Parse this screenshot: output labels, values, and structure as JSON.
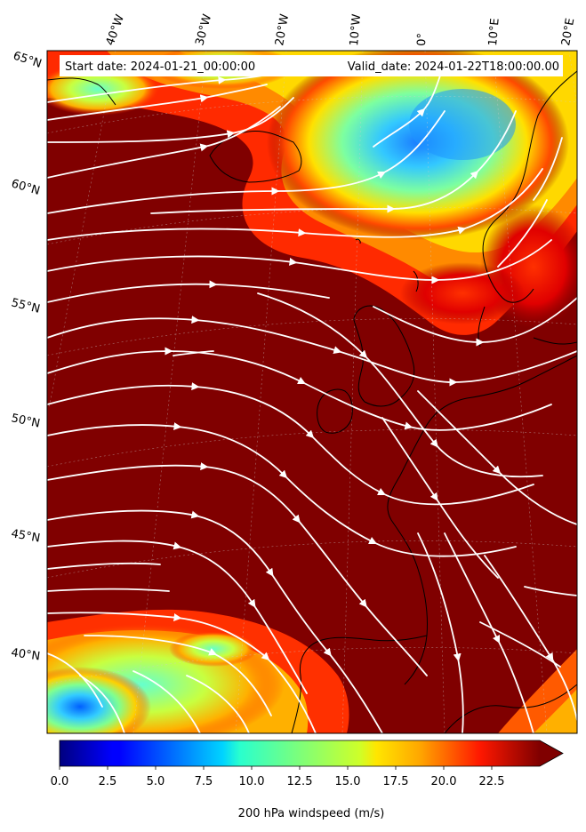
{
  "header": {
    "start_date": "Start date: 2024-01-21_00:00:00",
    "valid_date": "Valid_date: 2024-01-22T18:00:00.00"
  },
  "map": {
    "longitude_labels": [
      "40°W",
      "30°W",
      "20°W",
      "10°W",
      "0°",
      "10°E",
      "20°E"
    ],
    "latitude_labels": [
      "65°N",
      "60°N",
      "55°N",
      "50°N",
      "45°N",
      "40°N"
    ],
    "field": "200 hPa windspeed",
    "projection": "conic",
    "extent": {
      "lon": [
        -45,
        22
      ],
      "lat": [
        36,
        66
      ]
    }
  },
  "colorbar": {
    "title": "200 hPa windspeed (m/s)",
    "colormap": "jet",
    "min": 0.0,
    "max": 25.0,
    "extend": "max",
    "tick_labels": [
      "0.0",
      "2.5",
      "5.0",
      "7.5",
      "10.0",
      "12.5",
      "15.0",
      "17.5",
      "20.0",
      "22.5"
    ],
    "tick_values": [
      0.0,
      2.5,
      5.0,
      7.5,
      10.0,
      12.5,
      15.0,
      17.5,
      20.0,
      22.5
    ]
  },
  "colors": {
    "background": "#ffffff",
    "max_wind": "#800000",
    "streamline": "#ffffff",
    "coastline": "#000000"
  }
}
